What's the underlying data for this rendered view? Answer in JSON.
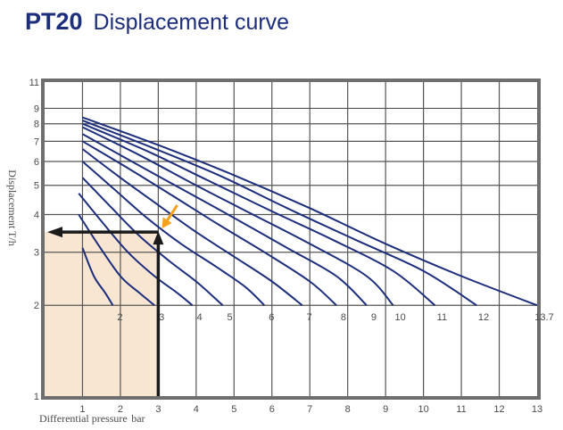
{
  "title": {
    "model": "PT20",
    "text": "Displacement curve"
  },
  "chart_data": {
    "type": "line",
    "xlabel": "Differential pressure",
    "xunit": "bar",
    "ylabel": "Displacement T/h",
    "xlim": [
      0,
      13
    ],
    "ylim": [
      1,
      11
    ],
    "yscale": "log",
    "x_ticks": [
      1,
      2,
      3,
      4,
      5,
      6,
      7,
      8,
      9,
      10,
      11,
      12,
      13
    ],
    "y_ticks": [
      1,
      2,
      3,
      4,
      5,
      6,
      7,
      8,
      9,
      11
    ],
    "grid": true,
    "colors": {
      "curve": "#1c2e7c",
      "frame": "#6e6e6e",
      "grid": "#555555",
      "fill": "#f9e6d2",
      "marker_arrow": "#1a1a1a",
      "highlight_arrow": "#f5a01a",
      "title": "#1c2e7c"
    },
    "series": [
      {
        "label": "2",
        "points": [
          [
            1.0,
            3.1
          ],
          [
            1.3,
            2.5
          ],
          [
            1.6,
            2.2
          ],
          [
            1.8,
            2.0
          ]
        ]
      },
      {
        "label": "3",
        "points": [
          [
            0.9,
            4.0
          ],
          [
            1.4,
            3.2
          ],
          [
            2.0,
            2.5
          ],
          [
            2.5,
            2.2
          ],
          [
            2.9,
            2.0
          ]
        ]
      },
      {
        "label": "4",
        "points": [
          [
            0.9,
            4.7
          ],
          [
            1.5,
            3.8
          ],
          [
            2.2,
            3.0
          ],
          [
            2.9,
            2.5
          ],
          [
            3.5,
            2.2
          ],
          [
            3.9,
            2.0
          ]
        ]
      },
      {
        "label": "5",
        "points": [
          [
            1.0,
            5.3
          ],
          [
            1.7,
            4.3
          ],
          [
            2.5,
            3.4
          ],
          [
            3.3,
            2.8
          ],
          [
            4.0,
            2.4
          ],
          [
            4.7,
            2.0
          ]
        ]
      },
      {
        "label": "6",
        "points": [
          [
            1.0,
            6.0
          ],
          [
            1.8,
            4.9
          ],
          [
            2.7,
            3.9
          ],
          [
            3.6,
            3.2
          ],
          [
            4.5,
            2.7
          ],
          [
            5.3,
            2.3
          ],
          [
            5.8,
            2.0
          ]
        ]
      },
      {
        "label": "7",
        "points": [
          [
            1.0,
            6.6
          ],
          [
            2.0,
            5.3
          ],
          [
            3.0,
            4.3
          ],
          [
            4.0,
            3.5
          ],
          [
            5.0,
            2.9
          ],
          [
            6.0,
            2.4
          ],
          [
            6.8,
            2.0
          ]
        ]
      },
      {
        "label": "8",
        "points": [
          [
            1.0,
            7.0
          ],
          [
            2.2,
            5.7
          ],
          [
            3.4,
            4.6
          ],
          [
            4.6,
            3.7
          ],
          [
            5.8,
            3.0
          ],
          [
            7.0,
            2.4
          ],
          [
            7.7,
            2.0
          ]
        ]
      },
      {
        "label": "9",
        "points": [
          [
            1.0,
            7.4
          ],
          [
            2.3,
            6.0
          ],
          [
            3.7,
            4.8
          ],
          [
            5.0,
            3.9
          ],
          [
            6.4,
            3.1
          ],
          [
            7.7,
            2.5
          ],
          [
            8.5,
            2.0
          ]
        ]
      },
      {
        "label": "10",
        "points": [
          [
            1.0,
            7.8
          ],
          [
            2.5,
            6.3
          ],
          [
            4.0,
            5.0
          ],
          [
            5.5,
            4.0
          ],
          [
            7.0,
            3.2
          ],
          [
            8.5,
            2.5
          ],
          [
            9.2,
            2.0
          ]
        ]
      },
      {
        "label": "11",
        "points": [
          [
            1.0,
            8.0
          ],
          [
            2.7,
            6.5
          ],
          [
            4.3,
            5.2
          ],
          [
            6.0,
            4.1
          ],
          [
            7.6,
            3.3
          ],
          [
            9.2,
            2.6
          ],
          [
            10.3,
            2.0
          ]
        ]
      },
      {
        "label": "12",
        "points": [
          [
            1.0,
            8.2
          ],
          [
            2.8,
            6.7
          ],
          [
            4.6,
            5.4
          ],
          [
            6.4,
            4.2
          ],
          [
            8.2,
            3.3
          ],
          [
            10.0,
            2.6
          ],
          [
            11.4,
            2.0
          ]
        ]
      },
      {
        "label": "13.7",
        "points": [
          [
            1.0,
            8.4
          ],
          [
            3.0,
            6.8
          ],
          [
            5.0,
            5.4
          ],
          [
            7.0,
            4.2
          ],
          [
            9.0,
            3.2
          ],
          [
            11.0,
            2.5
          ],
          [
            13.0,
            2.0
          ]
        ]
      }
    ],
    "reading_example": {
      "x": 3.0,
      "y": 3.5
    },
    "highlight_arrow": {
      "from": [
        3.5,
        4.3
      ],
      "to": [
        3.1,
        3.6
      ]
    }
  }
}
